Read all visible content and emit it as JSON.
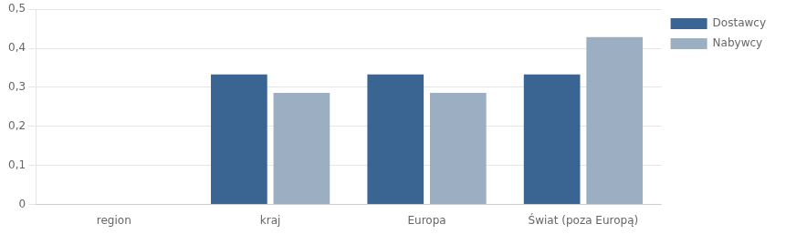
{
  "chart_data": {
    "type": "bar",
    "categories": [
      "region",
      "kraj",
      "Europa",
      "Świat (poza Europą)"
    ],
    "series": [
      {
        "name": "Dostawcy",
        "color": "#3A6491",
        "values": [
          0.0,
          0.333,
          0.333,
          0.333
        ]
      },
      {
        "name": "Nabywcy",
        "color": "#9BAEC2",
        "values": [
          0.0,
          0.286,
          0.286,
          0.429
        ]
      }
    ],
    "ylim": [
      0,
      0.5
    ],
    "yticks": [
      0,
      {
        "value": 0.1,
        "label": "0,1"
      },
      {
        "value": 0.2,
        "label": "0,2"
      },
      {
        "value": 0.3,
        "label": "0,3"
      },
      {
        "value": 0.4,
        "label": "0,4"
      },
      {
        "value": 0.5,
        "label": "0,5"
      }
    ],
    "grid": "y",
    "legend": "right"
  }
}
